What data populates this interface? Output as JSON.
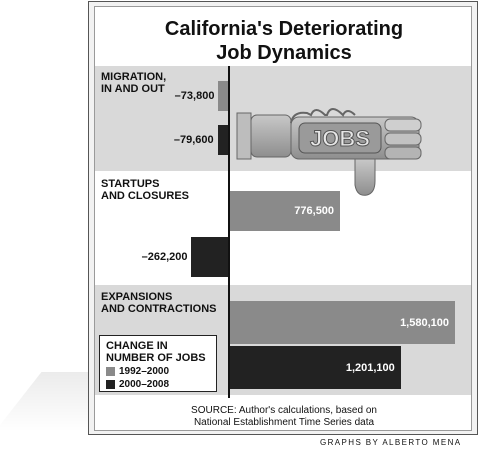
{
  "title_line1": "California's Deteriorating",
  "title_line2": "Job Dynamics",
  "colors": {
    "series1": "#8a8a8a",
    "series2": "#222222",
    "band": "#d9d9d9"
  },
  "thumb_text": "JOBS",
  "chart_data": {
    "type": "bar",
    "orientation": "horizontal",
    "categories": [
      [
        "MIGRATION,",
        "IN AND OUT"
      ],
      [
        "STARTUPS",
        "AND CLOSURES"
      ],
      [
        "EXPANSIONS",
        "AND CONTRACTIONS"
      ]
    ],
    "series": [
      {
        "name": "1992–2000",
        "values": [
          -73800,
          776500,
          1580100
        ],
        "labels": [
          "–73,800",
          "776,500",
          "1,580,100"
        ]
      },
      {
        "name": "2000–2008",
        "values": [
          -79600,
          -262200,
          1201100
        ],
        "labels": [
          "–79,600",
          "–262,200",
          "1,201,100"
        ]
      }
    ],
    "legend_title": [
      "CHANGE IN",
      "NUMBER OF JOBS"
    ],
    "legend_position": "bottom-left"
  },
  "source_line1": "SOURCE: Author's calculations, based on",
  "source_line2": "National Establishment Time Series data",
  "credit": "GRAPHS BY ALBERTO MENA"
}
